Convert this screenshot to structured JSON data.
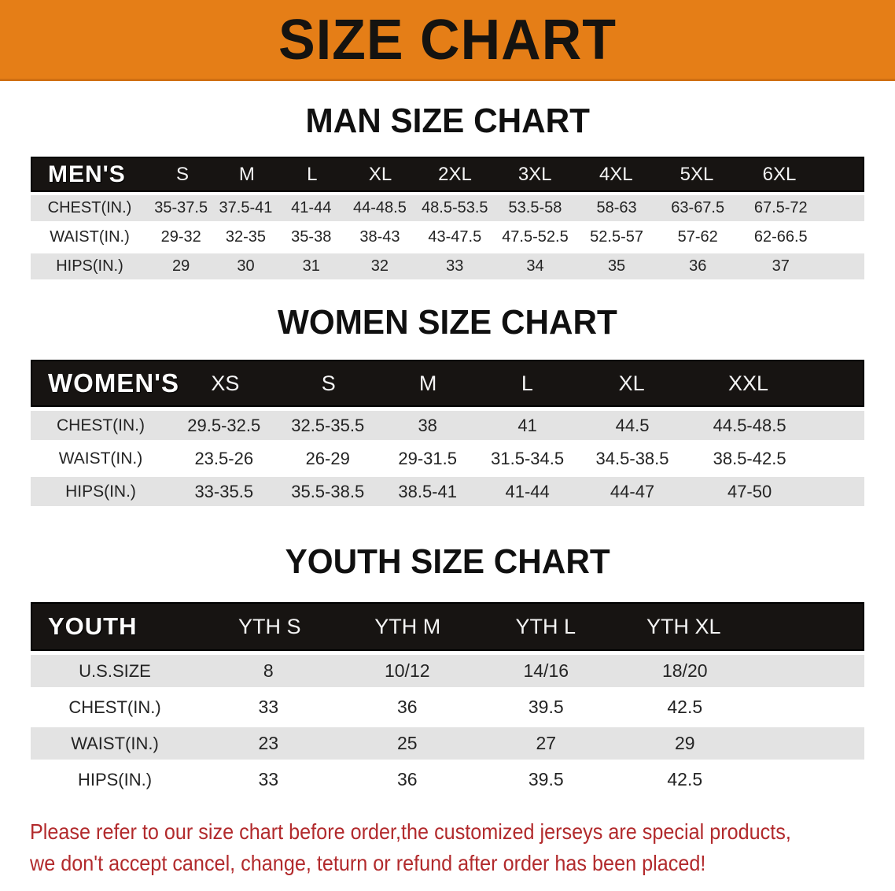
{
  "banner": {
    "title": "SIZE CHART"
  },
  "colors": {
    "banner_bg": "#E57E17",
    "table_header_bg": "#171412",
    "row_stripe": "#E3E3E3",
    "disclaimer_red": "#B22A2C"
  },
  "sections": [
    {
      "key": "men",
      "heading": "MAN SIZE CHART",
      "table": {
        "header_label": "MEN'S",
        "columns": [
          "S",
          "M",
          "L",
          "XL",
          "2XL",
          "3XL",
          "4XL",
          "5XL",
          "6XL"
        ],
        "rows": [
          {
            "label": "CHEST(IN.)",
            "values": [
              "35-37.5",
              "37.5-41",
              "41-44",
              "44-48.5",
              "48.5-53.5",
              "53.5-58",
              "58-63",
              "63-67.5",
              "67.5-72"
            ]
          },
          {
            "label": "WAIST(IN.)",
            "values": [
              "29-32",
              "32-35",
              "35-38",
              "38-43",
              "43-47.5",
              "47.5-52.5",
              "52.5-57",
              "57-62",
              "62-66.5"
            ]
          },
          {
            "label": "HIPS(IN.)",
            "values": [
              "29",
              "30",
              "31",
              "32",
              "33",
              "34",
              "35",
              "36",
              "37"
            ]
          }
        ]
      }
    },
    {
      "key": "women",
      "heading": "WOMEN SIZE CHART",
      "table": {
        "header_label": "WOMEN'S",
        "columns": [
          "XS",
          "S",
          "M",
          "L",
          "XL",
          "XXL"
        ],
        "rows": [
          {
            "label": "CHEST(IN.)",
            "values": [
              "29.5-32.5",
              "32.5-35.5",
              "38",
              "41",
              "44.5",
              "44.5-48.5"
            ]
          },
          {
            "label": "WAIST(IN.)",
            "values": [
              "23.5-26",
              "26-29",
              "29-31.5",
              "31.5-34.5",
              "34.5-38.5",
              "38.5-42.5"
            ]
          },
          {
            "label": "HIPS(IN.)",
            "values": [
              "33-35.5",
              "35.5-38.5",
              "38.5-41",
              "41-44",
              "44-47",
              "47-50"
            ]
          }
        ]
      }
    },
    {
      "key": "youth",
      "heading": "YOUTH SIZE CHART",
      "table": {
        "header_label": "YOUTH",
        "columns": [
          "YTH S",
          "YTH M",
          "YTH L",
          "YTH XL"
        ],
        "rows": [
          {
            "label": "U.S.SIZE",
            "values": [
              "8",
              "10/12",
              "14/16",
              "18/20"
            ]
          },
          {
            "label": "CHEST(IN.)",
            "values": [
              "33",
              "36",
              "39.5",
              "42.5"
            ]
          },
          {
            "label": "WAIST(IN.)",
            "values": [
              "23",
              "25",
              "27",
              "29"
            ]
          },
          {
            "label": "HIPS(IN.)",
            "values": [
              "33",
              "36",
              "39.5",
              "42.5"
            ]
          }
        ]
      }
    }
  ],
  "footer": {
    "line1": "Please refer to our size chart before order,the customized jerseys are special products,",
    "line2": "we don't accept cancel, change, teturn or refund after order has been placed!"
  }
}
